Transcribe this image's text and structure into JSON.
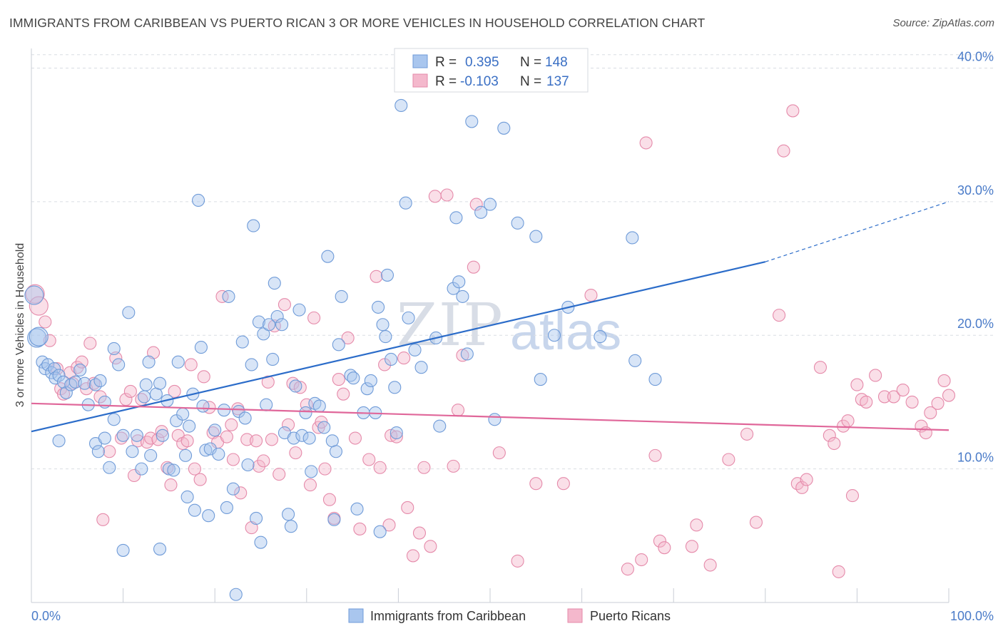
{
  "header": {
    "title": "IMMIGRANTS FROM CARIBBEAN VS PUERTO RICAN 3 OR MORE VEHICLES IN HOUSEHOLD CORRELATION CHART",
    "source": "Source: ZipAtlas.com"
  },
  "watermark": {
    "zip": "ZIP",
    "atlas": "atlas"
  },
  "legend": {
    "r_label": "R =",
    "n_label": "N =",
    "series": [
      {
        "r": "0.395",
        "n": "148"
      },
      {
        "r": "-0.103",
        "n": "137"
      }
    ]
  },
  "bottom_legend": [
    {
      "label": "Immigrants from Caribbean"
    },
    {
      "label": "Puerto Ricans"
    }
  ],
  "colors": {
    "blue_fill": "#a9c6ee",
    "blue_stroke": "#6f9bd8",
    "blue_line": "#2b6cc9",
    "pink_fill": "#f4b8cc",
    "pink_stroke": "#e58aaa",
    "pink_line": "#e0679a",
    "grid": "#d9dde3",
    "tick_text": "#4a7bc8"
  },
  "chart_data": {
    "type": "scatter",
    "title": "IMMIGRANTS FROM CARIBBEAN VS PUERTO RICAN 3 OR MORE VEHICLES IN HOUSEHOLD CORRELATION CHART",
    "xlabel": "",
    "ylabel": "3 or more Vehicles in Household",
    "xlim": [
      0,
      100
    ],
    "ylim": [
      0,
      42
    ],
    "x_tick_labels": [
      "0.0%",
      "100.0%"
    ],
    "y_ticks": [
      10,
      20,
      30,
      40
    ],
    "y_tick_labels": [
      "10.0%",
      "20.0%",
      "30.0%",
      "40.0%"
    ],
    "grid": "horizontal dashed",
    "legend_position": "top-center",
    "series": [
      {
        "name": "Immigrants from Caribbean",
        "color": "#6f9bd8",
        "trend": {
          "x": [
            0,
            80
          ],
          "y": [
            12.8,
            25.5
          ],
          "extended_to": [
            100,
            30.0
          ]
        },
        "points": [
          [
            0.3,
            23.0
          ],
          [
            0.6,
            19.8
          ],
          [
            0.8,
            19.9
          ],
          [
            1.2,
            18.0
          ],
          [
            1.5,
            17.5
          ],
          [
            1.8,
            17.8
          ],
          [
            2.2,
            17.2
          ],
          [
            2.5,
            17.5
          ],
          [
            2.6,
            16.8
          ],
          [
            3.0,
            17.0
          ],
          [
            3.5,
            16.5
          ],
          [
            3.8,
            15.7
          ],
          [
            4.3,
            16.3
          ],
          [
            4.8,
            16.5
          ],
          [
            5.3,
            17.4
          ],
          [
            5.8,
            16.4
          ],
          [
            6.2,
            14.8
          ],
          [
            7.0,
            16.3
          ],
          [
            7.5,
            16.6
          ],
          [
            8.0,
            15.0
          ],
          [
            3.0,
            12.1
          ],
          [
            7.0,
            11.9
          ],
          [
            7.3,
            11.3
          ],
          [
            8.0,
            12.3
          ],
          [
            8.5,
            10.1
          ],
          [
            9.0,
            19.0
          ],
          [
            9.5,
            17.8
          ],
          [
            9.0,
            13.7
          ],
          [
            10.0,
            12.5
          ],
          [
            10.6,
            21.7
          ],
          [
            11.0,
            11.3
          ],
          [
            11.5,
            12.5
          ],
          [
            12.3,
            15.4
          ],
          [
            12.5,
            16.3
          ],
          [
            12.0,
            10.0
          ],
          [
            12.8,
            18.0
          ],
          [
            13.0,
            11.0
          ],
          [
            13.6,
            15.6
          ],
          [
            14.0,
            16.4
          ],
          [
            14.3,
            12.5
          ],
          [
            14.8,
            15.1
          ],
          [
            15.0,
            10.0
          ],
          [
            15.5,
            9.9
          ],
          [
            15.8,
            13.6
          ],
          [
            16.0,
            18.0
          ],
          [
            16.5,
            14.1
          ],
          [
            16.8,
            11.0
          ],
          [
            17.0,
            7.9
          ],
          [
            17.2,
            13.2
          ],
          [
            17.6,
            15.6
          ],
          [
            17.8,
            6.9
          ],
          [
            18.2,
            30.1
          ],
          [
            18.5,
            19.1
          ],
          [
            18.7,
            14.7
          ],
          [
            19.0,
            11.4
          ],
          [
            19.3,
            6.5
          ],
          [
            19.5,
            11.5
          ],
          [
            20.0,
            12.9
          ],
          [
            20.4,
            11.1
          ],
          [
            21.0,
            14.4
          ],
          [
            21.3,
            7.1
          ],
          [
            21.5,
            22.9
          ],
          [
            22.0,
            8.5
          ],
          [
            22.3,
            0.6
          ],
          [
            22.6,
            14.3
          ],
          [
            23.0,
            19.5
          ],
          [
            23.3,
            13.8
          ],
          [
            23.6,
            10.3
          ],
          [
            24.0,
            17.8
          ],
          [
            24.2,
            28.2
          ],
          [
            24.5,
            6.3
          ],
          [
            24.8,
            21.0
          ],
          [
            25.3,
            20.1
          ],
          [
            25.6,
            14.8
          ],
          [
            25.9,
            20.8
          ],
          [
            26.3,
            18.2
          ],
          [
            26.5,
            23.9
          ],
          [
            26.8,
            21.4
          ],
          [
            27.3,
            20.8
          ],
          [
            27.6,
            12.7
          ],
          [
            28.0,
            6.6
          ],
          [
            28.3,
            5.7
          ],
          [
            28.6,
            12.3
          ],
          [
            28.8,
            16.2
          ],
          [
            29.2,
            21.9
          ],
          [
            29.5,
            12.5
          ],
          [
            29.9,
            14.2
          ],
          [
            30.3,
            12.3
          ],
          [
            30.5,
            9.8
          ],
          [
            30.9,
            14.9
          ],
          [
            31.4,
            14.7
          ],
          [
            31.9,
            13.1
          ],
          [
            32.3,
            25.9
          ],
          [
            32.8,
            12.1
          ],
          [
            33.0,
            6.2
          ],
          [
            33.2,
            11.3
          ],
          [
            33.5,
            19.3
          ],
          [
            33.8,
            22.9
          ],
          [
            34.8,
            17.0
          ],
          [
            35.1,
            16.8
          ],
          [
            35.5,
            7.0
          ],
          [
            36.2,
            14.2
          ],
          [
            36.6,
            16.0
          ],
          [
            37.0,
            16.6
          ],
          [
            37.5,
            14.2
          ],
          [
            37.8,
            22.1
          ],
          [
            38.0,
            5.3
          ],
          [
            38.3,
            20.8
          ],
          [
            38.6,
            19.9
          ],
          [
            38.8,
            24.5
          ],
          [
            39.2,
            18.2
          ],
          [
            39.6,
            16.1
          ],
          [
            39.8,
            12.7
          ],
          [
            40.3,
            37.2
          ],
          [
            40.8,
            29.9
          ],
          [
            41.1,
            21.3
          ],
          [
            41.8,
            18.9
          ],
          [
            42.5,
            17.6
          ],
          [
            44.1,
            19.8
          ],
          [
            44.5,
            13.2
          ],
          [
            46.0,
            23.5
          ],
          [
            46.3,
            28.8
          ],
          [
            46.6,
            24.0
          ],
          [
            47.0,
            22.9
          ],
          [
            47.5,
            18.6
          ],
          [
            48.0,
            36.0
          ],
          [
            49.0,
            29.2
          ],
          [
            50.0,
            29.8
          ],
          [
            50.5,
            13.7
          ],
          [
            51.5,
            35.5
          ],
          [
            53.0,
            28.4
          ],
          [
            55.0,
            27.4
          ],
          [
            55.5,
            16.7
          ],
          [
            57.0,
            20.0
          ],
          [
            58.5,
            22.1
          ],
          [
            62.0,
            19.9
          ],
          [
            65.5,
            27.3
          ],
          [
            65.8,
            18.1
          ],
          [
            68.0,
            16.7
          ],
          [
            10.0,
            3.9
          ],
          [
            14.0,
            4.0
          ],
          [
            25.0,
            4.5
          ]
        ]
      },
      {
        "name": "Puerto Ricans",
        "color": "#e58aaa",
        "trend": {
          "x": [
            0,
            100
          ],
          "y": [
            14.9,
            12.9
          ]
        },
        "points": [
          [
            0.4,
            23.1
          ],
          [
            0.8,
            22.2
          ],
          [
            1.5,
            21.0
          ],
          [
            2.0,
            19.6
          ],
          [
            2.8,
            17.5
          ],
          [
            3.2,
            16.0
          ],
          [
            3.5,
            15.6
          ],
          [
            4.2,
            17.2
          ],
          [
            4.5,
            16.4
          ],
          [
            5.0,
            17.6
          ],
          [
            5.5,
            18.0
          ],
          [
            6.0,
            16.0
          ],
          [
            6.4,
            19.4
          ],
          [
            6.8,
            16.4
          ],
          [
            7.5,
            15.4
          ],
          [
            7.8,
            6.2
          ],
          [
            8.5,
            11.3
          ],
          [
            9.2,
            18.3
          ],
          [
            9.8,
            12.3
          ],
          [
            10.3,
            15.2
          ],
          [
            10.8,
            15.8
          ],
          [
            11.2,
            9.5
          ],
          [
            11.6,
            12.1
          ],
          [
            12.0,
            15.2
          ],
          [
            12.6,
            12.0
          ],
          [
            13.0,
            12.3
          ],
          [
            13.3,
            18.7
          ],
          [
            13.8,
            12.2
          ],
          [
            14.2,
            12.8
          ],
          [
            14.8,
            10.1
          ],
          [
            15.2,
            8.8
          ],
          [
            15.6,
            15.8
          ],
          [
            16.0,
            12.5
          ],
          [
            16.5,
            11.9
          ],
          [
            17.0,
            12.1
          ],
          [
            17.4,
            17.8
          ],
          [
            17.8,
            10.0
          ],
          [
            18.4,
            9.2
          ],
          [
            18.8,
            16.9
          ],
          [
            19.4,
            14.6
          ],
          [
            19.8,
            12.7
          ],
          [
            20.3,
            12.0
          ],
          [
            20.8,
            22.9
          ],
          [
            21.3,
            12.4
          ],
          [
            21.8,
            13.3
          ],
          [
            22.0,
            10.7
          ],
          [
            22.5,
            14.5
          ],
          [
            22.8,
            8.2
          ],
          [
            23.5,
            12.2
          ],
          [
            24.0,
            5.6
          ],
          [
            24.5,
            12.1
          ],
          [
            24.8,
            10.2
          ],
          [
            25.3,
            10.6
          ],
          [
            25.8,
            16.5
          ],
          [
            26.2,
            12.2
          ],
          [
            26.5,
            20.7
          ],
          [
            27.0,
            9.6
          ],
          [
            27.6,
            22.3
          ],
          [
            28.0,
            13.3
          ],
          [
            28.5,
            16.4
          ],
          [
            28.8,
            11.2
          ],
          [
            29.3,
            16.1
          ],
          [
            30.0,
            14.8
          ],
          [
            30.4,
            8.8
          ],
          [
            30.8,
            21.3
          ],
          [
            31.3,
            13.1
          ],
          [
            31.6,
            13.5
          ],
          [
            32.0,
            10.0
          ],
          [
            32.5,
            7.7
          ],
          [
            33.0,
            6.3
          ],
          [
            33.5,
            16.7
          ],
          [
            34.0,
            15.6
          ],
          [
            34.5,
            19.8
          ],
          [
            35.3,
            12.3
          ],
          [
            35.8,
            5.5
          ],
          [
            36.8,
            10.7
          ],
          [
            37.6,
            24.4
          ],
          [
            38.0,
            10.1
          ],
          [
            38.5,
            17.8
          ],
          [
            39.0,
            5.8
          ],
          [
            39.2,
            12.5
          ],
          [
            39.8,
            12.4
          ],
          [
            40.6,
            18.3
          ],
          [
            41.0,
            7.1
          ],
          [
            41.6,
            3.5
          ],
          [
            42.3,
            5.2
          ],
          [
            42.8,
            10.1
          ],
          [
            43.5,
            4.2
          ],
          [
            44.0,
            30.4
          ],
          [
            45.3,
            30.5
          ],
          [
            46.0,
            10.2
          ],
          [
            46.5,
            14.4
          ],
          [
            47.0,
            18.5
          ],
          [
            48.2,
            25.1
          ],
          [
            48.5,
            29.8
          ],
          [
            51.0,
            11.2
          ],
          [
            53.0,
            3.1
          ],
          [
            55.0,
            8.9
          ],
          [
            58.0,
            8.9
          ],
          [
            61.0,
            23.0
          ],
          [
            65.0,
            2.5
          ],
          [
            66.5,
            3.2
          ],
          [
            67.0,
            34.4
          ],
          [
            68.0,
            11.0
          ],
          [
            68.5,
            4.6
          ],
          [
            69.0,
            4.1
          ],
          [
            72.0,
            4.2
          ],
          [
            72.5,
            5.8
          ],
          [
            74.0,
            2.8
          ],
          [
            76.0,
            10.7
          ],
          [
            78.0,
            12.6
          ],
          [
            79.0,
            6.0
          ],
          [
            81.5,
            21.5
          ],
          [
            82.0,
            33.8
          ],
          [
            83.0,
            36.8
          ],
          [
            83.5,
            8.9
          ],
          [
            84.0,
            8.6
          ],
          [
            84.5,
            9.2
          ],
          [
            86.0,
            17.6
          ],
          [
            87.0,
            12.5
          ],
          [
            87.5,
            11.9
          ],
          [
            88.0,
            2.3
          ],
          [
            88.5,
            13.2
          ],
          [
            89.0,
            13.6
          ],
          [
            89.5,
            8.0
          ],
          [
            90.0,
            16.3
          ],
          [
            90.5,
            15.2
          ],
          [
            91.0,
            15.0
          ],
          [
            92.0,
            17.0
          ],
          [
            93.0,
            15.4
          ],
          [
            94.0,
            15.4
          ],
          [
            95.0,
            15.9
          ],
          [
            96.0,
            15.0
          ],
          [
            97.0,
            13.2
          ],
          [
            97.5,
            12.7
          ],
          [
            98.0,
            14.2
          ],
          [
            98.8,
            14.9
          ],
          [
            99.5,
            16.6
          ],
          [
            100.0,
            15.5
          ]
        ]
      }
    ]
  }
}
